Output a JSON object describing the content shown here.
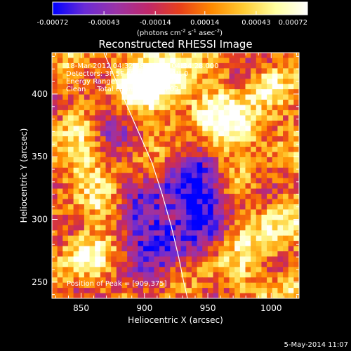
{
  "colorbar": {
    "tick_labels": [
      "-0.00072",
      "-0.00043",
      "-0.00014",
      "0.00014",
      "0.00043",
      "0.00072"
    ],
    "tick_values": [
      -0.00072,
      -0.00043,
      -0.00014,
      0.00014,
      0.00043,
      0.00072
    ],
    "unit_main": "(photons cm",
    "unit_exp1": "-2",
    "unit_mid1": " s",
    "unit_exp2": "-1",
    "unit_mid2": " asec",
    "unit_exp3": "-2",
    "unit_end": ")",
    "range": [
      -0.00072,
      0.00072
    ],
    "colormap": [
      "#0000ff",
      "#6a2bd6",
      "#9b33a6",
      "#c0286a",
      "#e8401a",
      "#ff8a00",
      "#ffcc33",
      "#ffffa0",
      "#ffffff"
    ]
  },
  "chart_data": {
    "type": "heatmap",
    "title": "Reconstructed RHESSI Image",
    "xlabel": "Heliocentric X (arcsec)",
    "ylabel": "Heliocentric Y (arcsec)",
    "xlim": [
      827,
      1022
    ],
    "ylim": [
      237,
      433
    ],
    "x_ticks": [
      850,
      900,
      950,
      1000
    ],
    "y_ticks": [
      250,
      300,
      350,
      400
    ],
    "info_lines": [
      "18-Mar-2012 04:32:48.000 to 04:34:28.000",
      "Detectors: 3F 5F 6F 7F 8F 9F, Att 0",
      "Energy Range: 12.0 - 25.0 keV",
      "Clean     Total counts: 3.26E+03"
    ],
    "peak_label": "Position of Peak = [909,375]",
    "peak": [
      909,
      375
    ],
    "limb_curve": [
      [
        868,
        433
      ],
      [
        880,
        405
      ],
      [
        893,
        375
      ],
      [
        906,
        345
      ],
      [
        914,
        320
      ],
      [
        921,
        295
      ],
      [
        927,
        270
      ],
      [
        931,
        250
      ],
      [
        934,
        237
      ]
    ],
    "grid_cols": 46,
    "grid_rows": 47
  },
  "footer": {
    "timestamp": "5-May-2014 11:07"
  }
}
